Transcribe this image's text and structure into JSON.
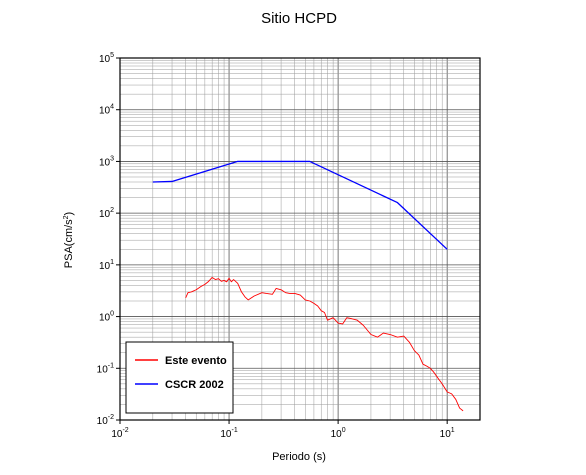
{
  "chart_data": {
    "type": "line",
    "title": "Sitio HCPD",
    "xlabel": "Periodo (s)",
    "ylabel_base": "PSA(cm/s",
    "ylabel_exp": "2",
    "ylabel_close": ")",
    "x_scale": "log",
    "y_scale": "log",
    "xlim": [
      0.01,
      20
    ],
    "ylim": [
      0.01,
      100000
    ],
    "grid": true,
    "legend_position": "bottom-left",
    "x_ticks": [
      {
        "base": "10",
        "exp": "-2",
        "value": 0.01
      },
      {
        "base": "10",
        "exp": "-1",
        "value": 0.1
      },
      {
        "base": "10",
        "exp": "0",
        "value": 1
      },
      {
        "base": "10",
        "exp": "1",
        "value": 10
      }
    ],
    "y_ticks": [
      {
        "base": "10",
        "exp": "-2",
        "value": 0.01
      },
      {
        "base": "10",
        "exp": "-1",
        "value": 0.1
      },
      {
        "base": "10",
        "exp": "0",
        "value": 1
      },
      {
        "base": "10",
        "exp": "1",
        "value": 10
      },
      {
        "base": "10",
        "exp": "2",
        "value": 100
      },
      {
        "base": "10",
        "exp": "3",
        "value": 1000
      },
      {
        "base": "10",
        "exp": "4",
        "value": 10000
      },
      {
        "base": "10",
        "exp": "5",
        "value": 100000
      }
    ],
    "series": [
      {
        "name": "Este evento",
        "color": "#ff0000",
        "x": [
          0.04,
          0.042,
          0.045,
          0.05,
          0.055,
          0.06,
          0.065,
          0.07,
          0.075,
          0.08,
          0.085,
          0.09,
          0.095,
          0.1,
          0.105,
          0.11,
          0.12,
          0.13,
          0.14,
          0.15,
          0.17,
          0.2,
          0.22,
          0.25,
          0.27,
          0.3,
          0.33,
          0.36,
          0.4,
          0.45,
          0.5,
          0.55,
          0.6,
          0.65,
          0.7,
          0.75,
          0.8,
          0.9,
          1.0,
          1.1,
          1.2,
          1.3,
          1.5,
          1.7,
          2.0,
          2.3,
          2.6,
          3.0,
          3.5,
          4.0,
          4.5,
          5.0,
          5.5,
          6.0,
          6.5,
          7.0,
          7.5,
          8.0,
          9.0,
          10.0,
          11.0,
          12.0,
          13.0,
          14.0
        ],
        "y": [
          2.3,
          2.9,
          3.0,
          3.3,
          3.8,
          4.2,
          4.8,
          5.7,
          5.2,
          5.4,
          4.8,
          5.0,
          4.7,
          5.5,
          4.7,
          5.2,
          4.4,
          3.0,
          2.4,
          2.1,
          2.5,
          2.9,
          2.8,
          2.7,
          3.5,
          3.3,
          2.9,
          2.8,
          2.8,
          2.6,
          2.1,
          2.0,
          1.8,
          1.6,
          1.3,
          1.2,
          0.85,
          0.95,
          0.75,
          0.72,
          0.95,
          0.92,
          0.85,
          0.68,
          0.45,
          0.4,
          0.48,
          0.45,
          0.4,
          0.42,
          0.32,
          0.22,
          0.18,
          0.12,
          0.11,
          0.1,
          0.085,
          0.07,
          0.05,
          0.035,
          0.032,
          0.025,
          0.017,
          0.015
        ]
      },
      {
        "name": "CSCR 2002",
        "color": "#0000ff",
        "x": [
          0.02,
          0.03,
          0.12,
          0.55,
          3.5,
          10
        ],
        "y": [
          400,
          410,
          1000,
          1000,
          160,
          20
        ]
      }
    ]
  }
}
